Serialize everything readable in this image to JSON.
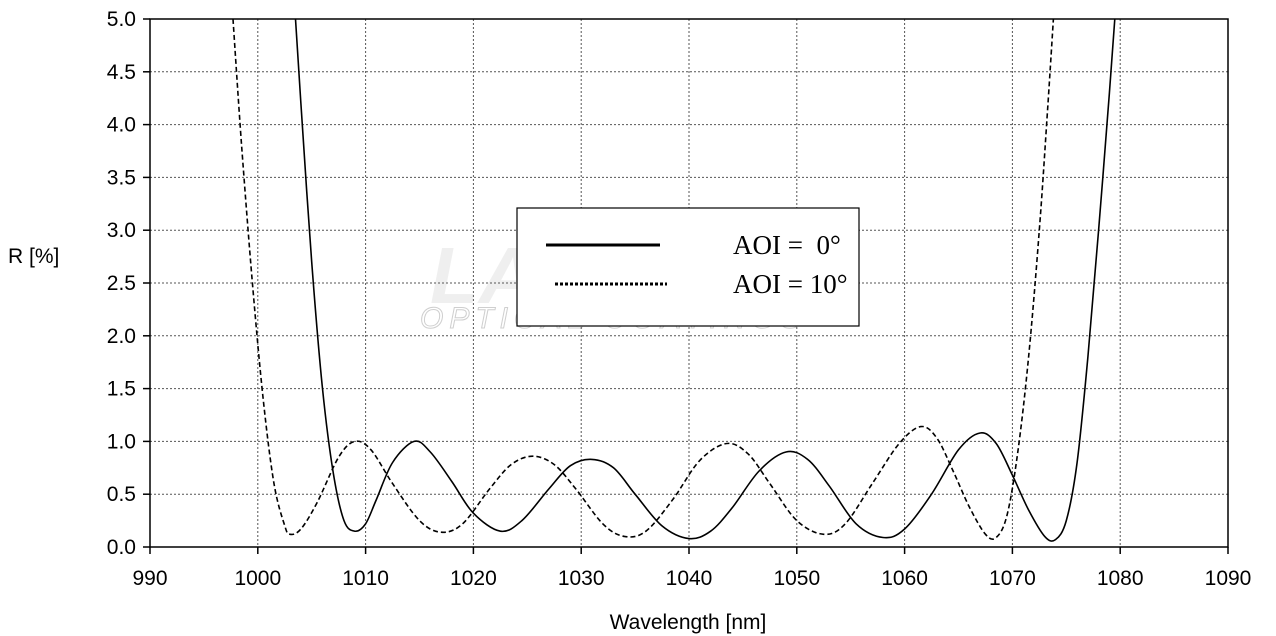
{
  "chart_data": {
    "type": "line",
    "xlabel": "Wavelength [nm]",
    "ylabel": "R [%]",
    "xlim": [
      990,
      1090
    ],
    "ylim": [
      0,
      5
    ],
    "x_ticks": [
      "990",
      "1000",
      "1010",
      "1020",
      "1030",
      "1040",
      "1050",
      "1060",
      "1070",
      "1080",
      "1090"
    ],
    "y_ticks": [
      "0.0",
      "0.5",
      "1.0",
      "1.5",
      "2.0",
      "2.5",
      "3.0",
      "3.5",
      "4.0",
      "4.5",
      "5.0"
    ],
    "grid": true,
    "legend_position": "center-top",
    "watermark": "LAYERTEC OPTICAL COATINGS",
    "series": [
      {
        "name": "AOI =  0°",
        "style": "solid",
        "color": "#000000",
        "points": [
          [
            1003.5,
            5.0
          ],
          [
            1004.0,
            4.2
          ],
          [
            1005.0,
            2.7
          ],
          [
            1006.0,
            1.5
          ],
          [
            1007.0,
            0.7
          ],
          [
            1008.0,
            0.25
          ],
          [
            1009.0,
            0.15
          ],
          [
            1010.0,
            0.22
          ],
          [
            1011.0,
            0.45
          ],
          [
            1012.5,
            0.8
          ],
          [
            1014.5,
            1.0
          ],
          [
            1016.0,
            0.9
          ],
          [
            1018.0,
            0.62
          ],
          [
            1020.0,
            0.32
          ],
          [
            1022.5,
            0.15
          ],
          [
            1024.5,
            0.25
          ],
          [
            1027.0,
            0.55
          ],
          [
            1029.0,
            0.77
          ],
          [
            1031.0,
            0.83
          ],
          [
            1033.0,
            0.75
          ],
          [
            1035.0,
            0.5
          ],
          [
            1037.5,
            0.2
          ],
          [
            1040.0,
            0.08
          ],
          [
            1042.0,
            0.15
          ],
          [
            1044.0,
            0.37
          ],
          [
            1046.5,
            0.72
          ],
          [
            1049.0,
            0.9
          ],
          [
            1051.0,
            0.83
          ],
          [
            1053.0,
            0.58
          ],
          [
            1055.5,
            0.22
          ],
          [
            1058.0,
            0.09
          ],
          [
            1060.0,
            0.17
          ],
          [
            1062.5,
            0.5
          ],
          [
            1065.0,
            0.92
          ],
          [
            1067.0,
            1.08
          ],
          [
            1068.5,
            0.98
          ],
          [
            1070.0,
            0.68
          ],
          [
            1071.5,
            0.35
          ],
          [
            1073.0,
            0.1
          ],
          [
            1074.0,
            0.07
          ],
          [
            1075.0,
            0.25
          ],
          [
            1076.0,
            0.8
          ],
          [
            1077.0,
            1.8
          ],
          [
            1078.0,
            3.0
          ],
          [
            1079.0,
            4.3
          ],
          [
            1079.5,
            5.0
          ]
        ]
      },
      {
        "name": "AOI = 10°",
        "style": "dashed",
        "color": "#000000",
        "points": [
          [
            997.7,
            5.0
          ],
          [
            998.5,
            3.8
          ],
          [
            999.5,
            2.5
          ],
          [
            1000.5,
            1.4
          ],
          [
            1001.5,
            0.6
          ],
          [
            1002.5,
            0.2
          ],
          [
            1003.0,
            0.12
          ],
          [
            1004.0,
            0.17
          ],
          [
            1005.5,
            0.42
          ],
          [
            1007.5,
            0.85
          ],
          [
            1009.0,
            1.0
          ],
          [
            1010.5,
            0.92
          ],
          [
            1012.5,
            0.6
          ],
          [
            1015.0,
            0.25
          ],
          [
            1017.0,
            0.14
          ],
          [
            1019.0,
            0.22
          ],
          [
            1021.5,
            0.55
          ],
          [
            1023.5,
            0.78
          ],
          [
            1025.5,
            0.86
          ],
          [
            1027.5,
            0.78
          ],
          [
            1029.5,
            0.55
          ],
          [
            1032.0,
            0.22
          ],
          [
            1034.0,
            0.1
          ],
          [
            1036.0,
            0.15
          ],
          [
            1038.5,
            0.45
          ],
          [
            1041.0,
            0.82
          ],
          [
            1043.5,
            0.98
          ],
          [
            1045.5,
            0.88
          ],
          [
            1047.5,
            0.6
          ],
          [
            1050.0,
            0.25
          ],
          [
            1052.5,
            0.12
          ],
          [
            1054.5,
            0.22
          ],
          [
            1057.0,
            0.6
          ],
          [
            1059.5,
            0.98
          ],
          [
            1061.5,
            1.14
          ],
          [
            1063.0,
            1.03
          ],
          [
            1064.5,
            0.72
          ],
          [
            1066.0,
            0.38
          ],
          [
            1067.5,
            0.12
          ],
          [
            1068.5,
            0.09
          ],
          [
            1069.5,
            0.3
          ],
          [
            1070.5,
            0.9
          ],
          [
            1071.5,
            1.8
          ],
          [
            1072.5,
            3.0
          ],
          [
            1073.3,
            4.2
          ],
          [
            1073.8,
            5.0
          ]
        ]
      }
    ]
  }
}
